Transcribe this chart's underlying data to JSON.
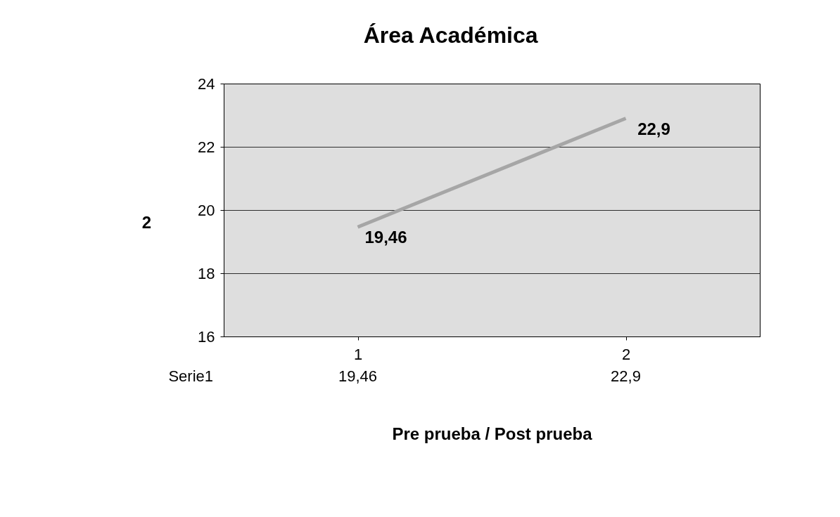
{
  "chart_data": {
    "type": "line",
    "title": "Área Académica",
    "xlabel": "Pre prueba / Post prueba",
    "ylabel": "2",
    "categories": [
      "1",
      "2"
    ],
    "series": [
      {
        "name": "Serie1",
        "color": "#a6a6a6",
        "values": [
          19.46,
          22.9
        ],
        "value_labels": [
          "19,46",
          "22,9"
        ]
      }
    ],
    "ylim": [
      16,
      24
    ],
    "yticks": [
      16,
      18,
      20,
      22,
      24
    ],
    "grid": "y",
    "marker": "none",
    "line_style": "solid"
  }
}
